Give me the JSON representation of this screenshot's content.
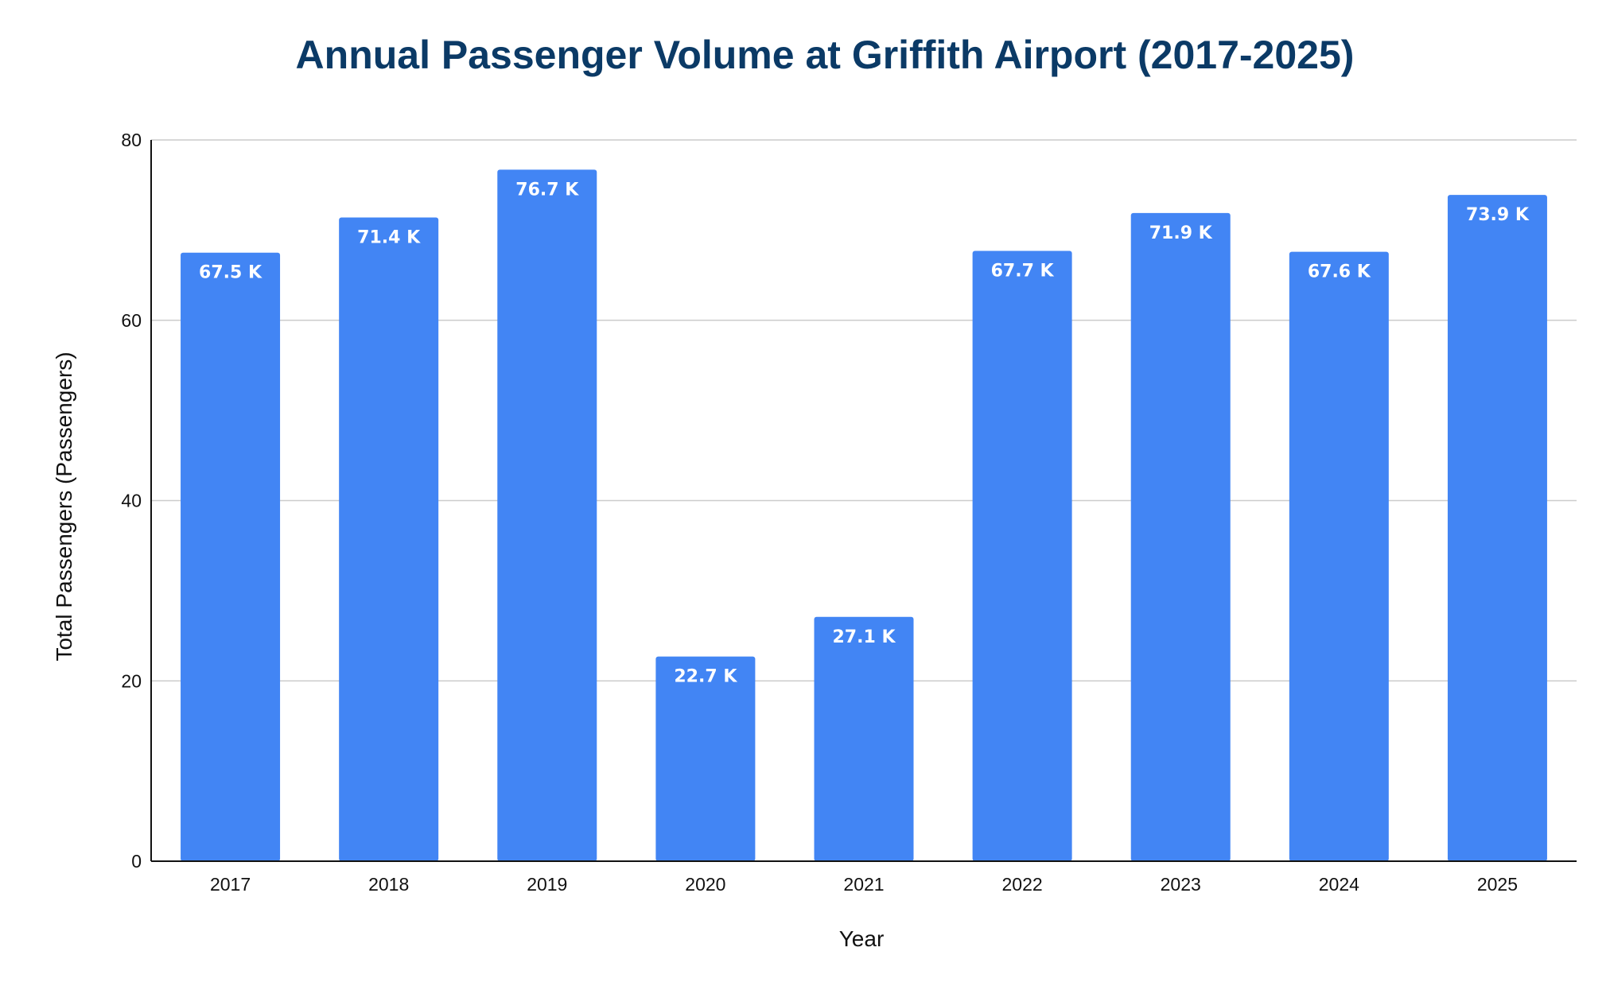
{
  "chart_data": {
    "type": "bar",
    "title": "Annual Passenger Volume at Griffith Airport (2017-2025)",
    "xlabel": "Year",
    "ylabel": "Total Passengers (Passengers)",
    "categories": [
      "2017",
      "2018",
      "2019",
      "2020",
      "2021",
      "2022",
      "2023",
      "2024",
      "2025"
    ],
    "values": [
      67.5,
      71.4,
      76.7,
      22.7,
      27.1,
      67.7,
      71.9,
      67.6,
      73.9
    ],
    "data_labels": [
      "67.5 K",
      "71.4 K",
      "76.7 K",
      "22.7 K",
      "27.1 K",
      "67.7 K",
      "71.9 K",
      "67.6 K",
      "73.9 K"
    ],
    "ylim": [
      0,
      80
    ],
    "yticks": [
      0,
      20,
      40,
      60,
      80
    ],
    "grid": true,
    "legend": "none",
    "colors": {
      "bar": "#4285f4",
      "title": "#0b3a66",
      "grid": "#cccccc",
      "axis": "#111111"
    }
  }
}
